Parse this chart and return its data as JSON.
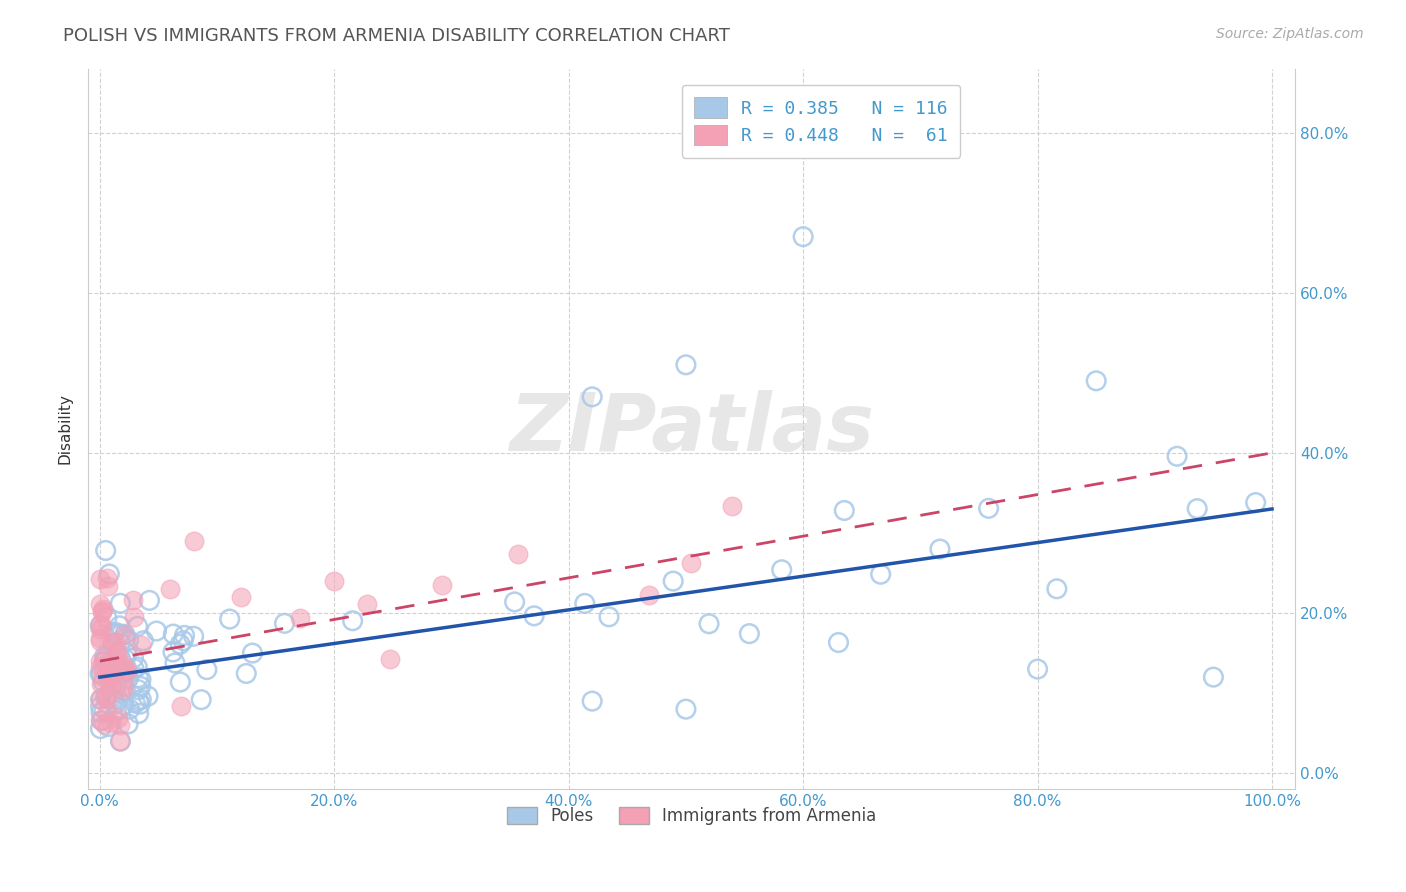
{
  "title": "POLISH VS IMMIGRANTS FROM ARMENIA DISABILITY CORRELATION CHART",
  "source": "Source: ZipAtlas.com",
  "ylabel": "Disability",
  "watermark": "ZIPatlas",
  "legend_label1": "Poles",
  "legend_label2": "Immigrants from Armenia",
  "color_blue": "#a8c8e8",
  "color_pink": "#f4a0b5",
  "color_blue_line": "#2255aa",
  "color_pink_line": "#cc4466",
  "color_tick": "#4499cc",
  "color_title": "#555555",
  "color_source": "#aaaaaa",
  "color_ylabel": "#333333",
  "legend_text1": "R = 0.385   N = 116",
  "legend_text2": "R = 0.448   N =  61",
  "xlim": [
    -0.01,
    1.02
  ],
  "ylim": [
    -0.02,
    0.88
  ],
  "xtick_vals": [
    0.0,
    0.2,
    0.4,
    0.6,
    0.8,
    1.0
  ],
  "ytick_vals": [
    0.0,
    0.2,
    0.4,
    0.6,
    0.8
  ],
  "xtick_labels": [
    "0.0%",
    "20.0%",
    "40.0%",
    "60.0%",
    "80.0%",
    "100.0%"
  ],
  "ytick_labels": [
    "0.0%",
    "20.0%",
    "40.0%",
    "60.0%",
    "80.0%"
  ],
  "blue_trend_start": 0.12,
  "blue_trend_end": 0.33,
  "pink_trend_x0": 0.0,
  "pink_trend_y0": 0.14,
  "pink_trend_x1": 1.0,
  "pink_trend_y1": 0.4
}
